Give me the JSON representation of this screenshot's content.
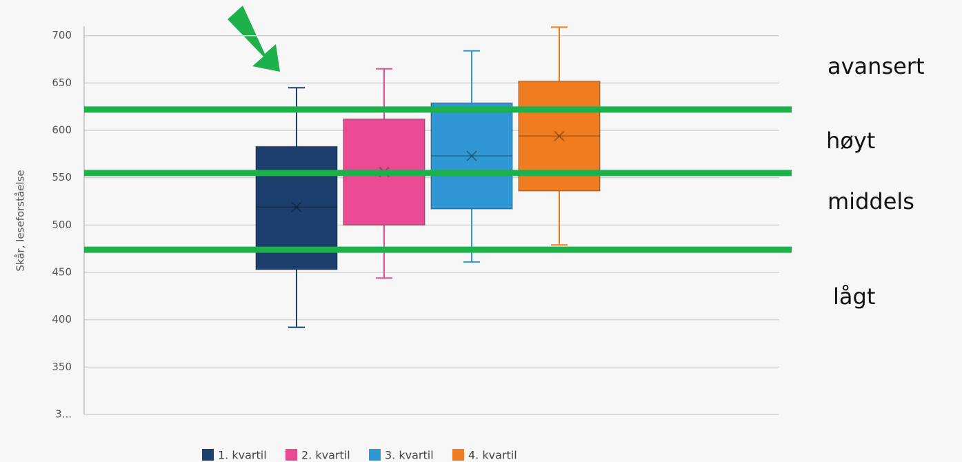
{
  "chart_data": {
    "type": "box",
    "y_label": "Skår, leseforståelse",
    "ylim": [
      300,
      710
    ],
    "yticks": [
      {
        "value": 300,
        "label": "3..."
      },
      350,
      400,
      450,
      500,
      550,
      600,
      650,
      700
    ],
    "grid": true,
    "legend": "bottom",
    "series": [
      {
        "name": "1. kvartil",
        "color": "#1d3f6e",
        "min": 392,
        "q1": 453,
        "median": 519,
        "q3": 583,
        "max": 645,
        "mean": 519
      },
      {
        "name": "2. kvartil",
        "color": "#ea4a93",
        "min": 444,
        "q1": 500,
        "median": 556,
        "q3": 612,
        "max": 665,
        "mean": 556
      },
      {
        "name": "3. kvartil",
        "color": "#2f97d3",
        "min": 461,
        "q1": 517,
        "median": 573,
        "q3": 629,
        "max": 684,
        "mean": 573
      },
      {
        "name": "4. kvartil",
        "color": "#f07c22",
        "min": 479,
        "q1": 536,
        "median": 594,
        "q3": 652,
        "max": 709,
        "mean": 594
      }
    ],
    "reference_lines": [
      622,
      555,
      474
    ],
    "reference_color": "#1db04b",
    "level_labels": [
      "avansert",
      "høyt",
      "middels",
      "lågt"
    ]
  }
}
